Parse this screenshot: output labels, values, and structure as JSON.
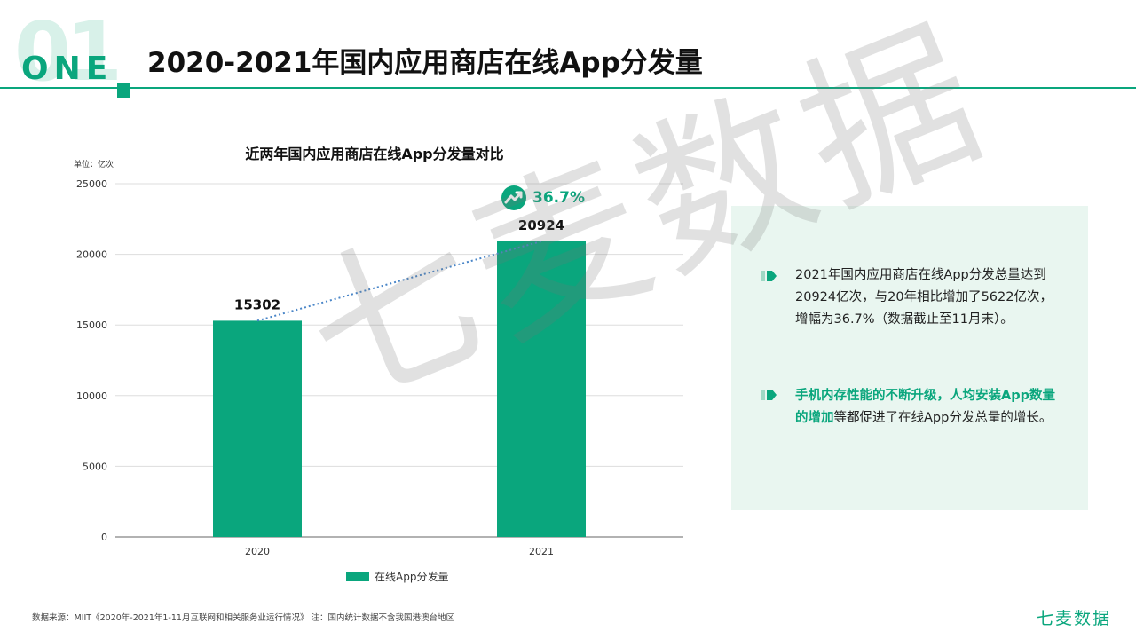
{
  "header": {
    "number": "01",
    "section_word": "ONE",
    "title": "2020-2021年国内应用商店在线App分发量"
  },
  "chart_data": {
    "type": "bar",
    "title": "近两年国内应用商店在线App分发量对比",
    "unit_label": "单位：亿次",
    "categories": [
      "2020",
      "2021"
    ],
    "series": [
      {
        "name": "在线App分发量",
        "values": [
          15302,
          20924
        ]
      }
    ],
    "ylim": [
      0,
      25000
    ],
    "yticks": [
      "0",
      "5000",
      "10000",
      "15000",
      "20000",
      "25000"
    ],
    "data_labels": [
      "15302",
      "20924"
    ],
    "growth_annotation": "36.7%",
    "grid": true,
    "legend_position": "bottom",
    "bar_color": "#0aa67d",
    "trend_line_color": "#4a86c8"
  },
  "panel": {
    "para1": "2021年国内应用商店在线App分发总量达到20924亿次，与20年相比增加了5622亿次，增幅为36.7%（数据截止至11月末）。",
    "para2_highlight": "手机内存性能的不断升级，人均安装App数量的增加",
    "para2_rest": "等都促进了在线App分发总量的增长。"
  },
  "footer": {
    "source": "数据来源：MIIT《2020年-2021年1-11月互联网和相关服务业运行情况》 注：国内统计数据不含我国港澳台地区",
    "brand": "七麦数据"
  },
  "watermark": "七麦数据",
  "colors": {
    "accent": "#0aa67d",
    "panel_bg": "#e9f6f0",
    "number_bg": "#d8f1e9"
  }
}
